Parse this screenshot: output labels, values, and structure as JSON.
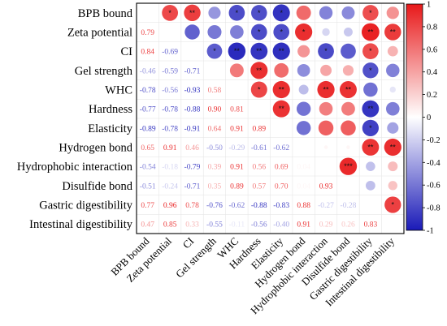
{
  "chart_data": {
    "type": "heatmap",
    "variables": [
      "BPB bound",
      "Zeta potential",
      "CI",
      "Gel strength",
      "WHC",
      "Hardness",
      "Elasticity",
      "Hydrogen bond",
      "Hydrophobic interaction",
      "Disulfide bond",
      "Gastric digestibility",
      "Intestinal digestibility"
    ],
    "matrix": [
      [
        null,
        0.79,
        0.84,
        -0.46,
        -0.78,
        -0.77,
        -0.89,
        0.65,
        -0.54,
        -0.51,
        0.77,
        0.47
      ],
      [
        0.79,
        null,
        -0.69,
        -0.59,
        -0.56,
        -0.78,
        -0.78,
        0.91,
        -0.18,
        -0.24,
        0.96,
        0.85
      ],
      [
        0.84,
        -0.69,
        null,
        -0.71,
        -0.93,
        -0.88,
        -0.91,
        0.46,
        -0.79,
        -0.71,
        0.78,
        0.33
      ],
      [
        -0.46,
        -0.59,
        -0.71,
        null,
        0.58,
        0.9,
        0.64,
        -0.5,
        0.39,
        0.35,
        -0.76,
        -0.55
      ],
      [
        -0.78,
        -0.56,
        -0.93,
        0.58,
        null,
        0.81,
        0.91,
        -0.29,
        0.91,
        0.89,
        -0.62,
        -0.11
      ],
      [
        -0.77,
        -0.78,
        -0.88,
        0.9,
        0.81,
        null,
        0.89,
        -0.61,
        0.56,
        0.57,
        -0.88,
        -0.56
      ],
      [
        -0.89,
        -0.78,
        -0.91,
        0.64,
        0.91,
        0.89,
        null,
        -0.62,
        0.69,
        0.7,
        -0.83,
        -0.4
      ],
      [
        0.65,
        0.91,
        0.46,
        -0.5,
        -0.29,
        -0.61,
        -0.62,
        null,
        0.04,
        0.04,
        0.88,
        0.91
      ],
      [
        -0.54,
        -0.18,
        -0.79,
        0.39,
        0.91,
        0.56,
        0.69,
        0.04,
        null,
        0.93,
        -0.27,
        0.29
      ],
      [
        -0.51,
        -0.24,
        -0.71,
        0.35,
        0.89,
        0.57,
        0.7,
        0.04,
        0.93,
        null,
        -0.28,
        0.26
      ],
      [
        0.77,
        0.96,
        0.78,
        -0.76,
        -0.62,
        -0.88,
        -0.83,
        0.88,
        -0.27,
        -0.28,
        null,
        0.83
      ],
      [
        0.47,
        0.85,
        0.33,
        -0.55,
        -0.11,
        -0.56,
        -0.4,
        0.91,
        0.29,
        0.26,
        0.83,
        null
      ]
    ],
    "significance": [
      [
        null,
        "*",
        "**",
        "",
        "*",
        "*",
        "*",
        "",
        "",
        "",
        "*",
        ""
      ],
      [
        "*",
        null,
        "",
        "",
        "",
        "*",
        "*",
        "*",
        "",
        "",
        "**",
        "**"
      ],
      [
        "**",
        "",
        null,
        "*",
        "**",
        "**",
        "**",
        "",
        "*",
        "",
        "*",
        ""
      ],
      [
        "",
        "",
        "*",
        null,
        "",
        "**",
        "",
        "",
        "",
        "",
        "*",
        ""
      ],
      [
        "*",
        "",
        "**",
        "",
        null,
        "*",
        "**",
        "",
        "**",
        "**",
        "",
        ""
      ],
      [
        "*",
        "*",
        "**",
        "**",
        "*",
        null,
        "**",
        "",
        "",
        "",
        "**",
        ""
      ],
      [
        "*",
        "*",
        "**",
        "",
        "**",
        "**",
        null,
        "",
        "",
        "",
        "*",
        ""
      ],
      [
        "",
        "*",
        "",
        "",
        "",
        "",
        "",
        null,
        "",
        "",
        "**",
        "**"
      ],
      [
        "",
        "",
        "*",
        "",
        "**",
        "",
        "",
        "",
        null,
        "***",
        "",
        ""
      ],
      [
        "",
        "",
        "",
        "",
        "**",
        "",
        "",
        "",
        "***",
        null,
        "",
        ""
      ],
      [
        "*",
        "**",
        "*",
        "*",
        "",
        "**",
        "*",
        "**",
        "",
        "",
        null,
        "*"
      ],
      [
        "",
        "**",
        "",
        "",
        "",
        "",
        "",
        "**",
        "",
        "",
        "*",
        null
      ]
    ],
    "colorbar": {
      "range": [
        -1,
        1
      ],
      "ticks": [
        "1",
        "0.8",
        "0.6",
        "0.4",
        "0.2",
        "0",
        "-0.2",
        "-0.4",
        "-0.6",
        "-0.8",
        "-1"
      ]
    },
    "upper_triangle": "circles",
    "lower_triangle": "numbers",
    "colors": {
      "positive": "#e8191a",
      "neutral": "#ffffff",
      "negative": "#1a1ab8"
    }
  }
}
